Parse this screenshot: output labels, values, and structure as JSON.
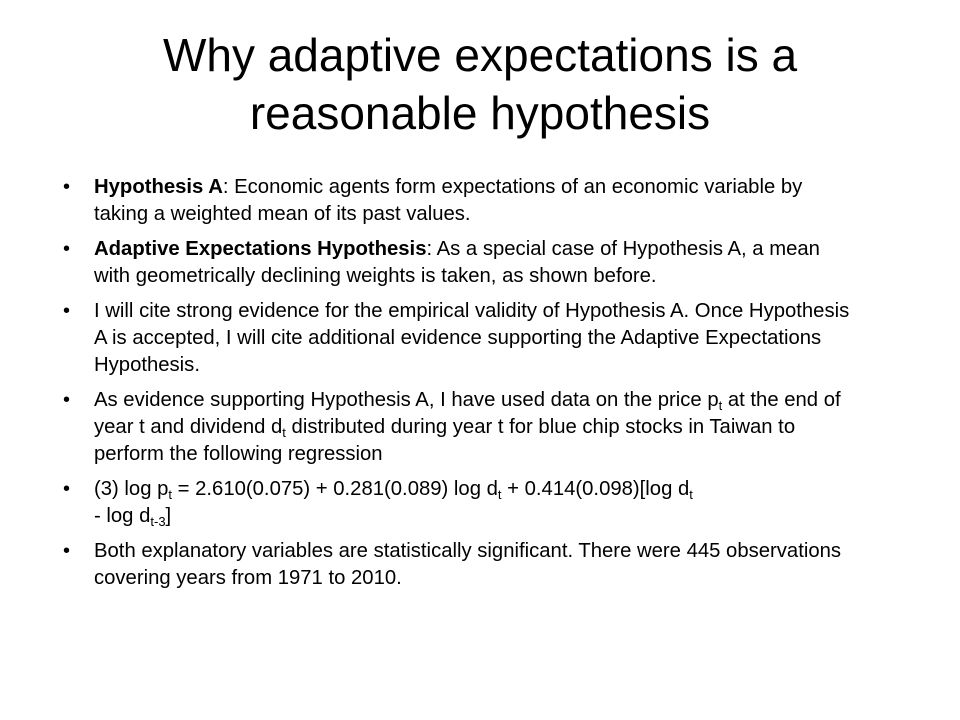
{
  "title": {
    "line1": "Why adaptive expectations is a",
    "line2": "reasonable hypothesis"
  },
  "bullets": [
    {
      "bold": "Hypothesis A",
      "text": ": Economic agents form expectations of an economic variable by taking a weighted mean of its past values."
    },
    {
      "bold": "Adaptive Expectations Hypothesis",
      "text": ": As a special case of Hypothesis A, a mean with geometrically declining weights is taken, as shown before."
    },
    {
      "text": "I will cite strong evidence for the empirical validity of Hypothesis A. Once Hypothesis A is accepted, I will cite additional evidence supporting the Adaptive Expectations Hypothesis."
    },
    {
      "part1": "As evidence supporting Hypothesis A, I have used data on the price p",
      "sub1": "t",
      "part2": " at the end of year t and dividend d",
      "sub2": "t",
      "part3": " distributed during year t for blue chip stocks in Taiwan to perform the following regression"
    },
    {
      "part1": "(3)   log p",
      "sub1": "t",
      "part2": "  = 2.610(0.075) + 0.281(0.089) log d",
      "sub2": "t",
      "part3": " + 0.414(0.098)[log d",
      "sub3": "t",
      "part4": " - log d",
      "sub4": "t-3",
      "part5": "]"
    },
    {
      "text": "Both explanatory variables are statistically significant. There were 445 observations covering years from 1971 to 2010."
    }
  ]
}
